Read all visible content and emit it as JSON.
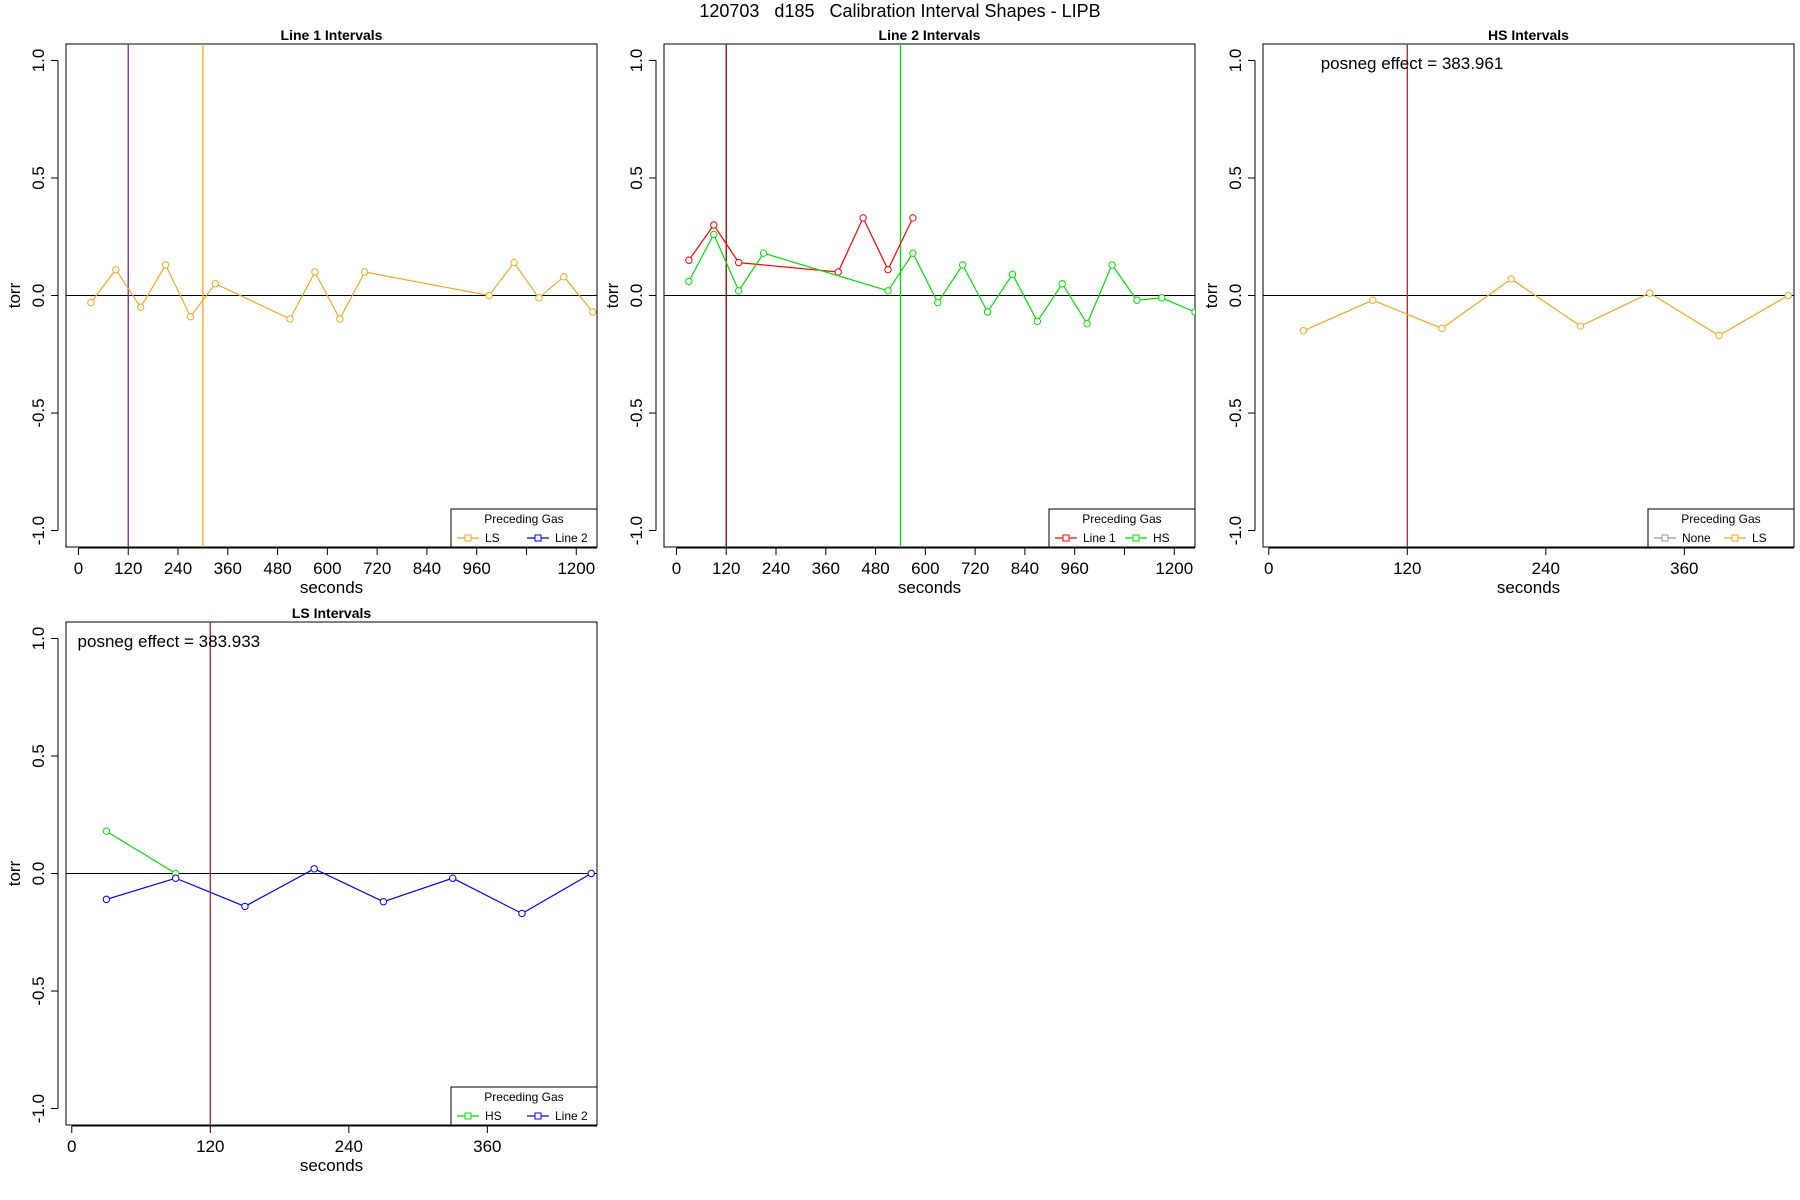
{
  "title": "120703   d185   Calibration Interval Shapes - LIPB",
  "chart_data": [
    {
      "type": "line",
      "title": "Line 1 Intervals",
      "xlabel": "seconds",
      "ylabel": "torr",
      "xlim": [
        -30,
        1250
      ],
      "ylim": [
        -1.07,
        1.07
      ],
      "xticks": [
        0,
        120,
        240,
        360,
        480,
        600,
        720,
        840,
        960,
        1080,
        1200
      ],
      "xtick_labels": [
        "0",
        "120",
        "240",
        "360",
        "480",
        "600",
        "720",
        "840",
        "960",
        "",
        "1200"
      ],
      "yticks": [
        -1.0,
        -0.5,
        0.0,
        0.5,
        1.0
      ],
      "ytick_labels": [
        "-1.0",
        "-0.5",
        "0.0",
        "0.5",
        "1.0"
      ],
      "hline": 0,
      "vlines": [
        {
          "x": 120,
          "color": "#7b1fa2"
        },
        {
          "x": 300,
          "color": "#f5a623"
        }
      ],
      "series": [
        {
          "name": "LS",
          "color": "#f5a623",
          "x": [
            30,
            90,
            150,
            210,
            270,
            330,
            510,
            570,
            630,
            690,
            990,
            1050,
            1110,
            1170,
            1240
          ],
          "y": [
            -0.03,
            0.11,
            -0.05,
            0.13,
            -0.09,
            0.05,
            -0.1,
            0.1,
            -0.1,
            0.1,
            0.0,
            0.14,
            -0.01,
            0.08,
            -0.07
          ]
        }
      ],
      "legend": {
        "title": "Preceding Gas",
        "entries": [
          {
            "label": "LS",
            "color": "#f5a623"
          },
          {
            "label": "Line 2",
            "color": "#0000ff"
          }
        ],
        "position": "bottom-right"
      }
    },
    {
      "type": "line",
      "title": "Line 2 Intervals",
      "xlabel": "seconds",
      "ylabel": "torr",
      "xlim": [
        -30,
        1250
      ],
      "ylim": [
        -1.07,
        1.07
      ],
      "xticks": [
        0,
        120,
        240,
        360,
        480,
        600,
        720,
        840,
        960,
        1080,
        1200
      ],
      "xtick_labels": [
        "0",
        "120",
        "240",
        "360",
        "480",
        "600",
        "720",
        "840",
        "960",
        "",
        "1200"
      ],
      "yticks": [
        -1.0,
        -0.5,
        0.0,
        0.5,
        1.0
      ],
      "ytick_labels": [
        "-1.0",
        "-0.5",
        "0.0",
        "0.5",
        "1.0"
      ],
      "hline": 0,
      "vlines": [
        {
          "x": 120,
          "color": "#8b0000"
        },
        {
          "x": 540,
          "color": "#00e000"
        }
      ],
      "series": [
        {
          "name": "Line 1",
          "color": "#ff0000",
          "segments": [
            {
              "x": [
                30,
                90,
                150
              ],
              "y": [
                0.15,
                0.3,
                0.14
              ]
            },
            {
              "x": [
                150,
                390
              ],
              "y": [
                0.14,
                0.1
              ]
            },
            {
              "x": [
                390,
                450,
                510,
                570
              ],
              "y": [
                0.1,
                0.33,
                0.11,
                0.33
              ]
            }
          ]
        },
        {
          "name": "HS",
          "color": "#00e000",
          "segments": [
            {
              "x": [
                30,
                90,
                150,
                210
              ],
              "y": [
                0.06,
                0.26,
                0.02,
                0.18
              ]
            },
            {
              "x": [
                210,
                510
              ],
              "y": [
                0.18,
                0.02
              ]
            },
            {
              "x": [
                510,
                570,
                630,
                690,
                750,
                810,
                870,
                930,
                990,
                1050,
                1110,
                1170,
                1250
              ],
              "y": [
                0.02,
                0.18,
                -0.03,
                0.13,
                -0.07,
                0.09,
                -0.11,
                0.05,
                -0.12,
                0.13,
                -0.02,
                -0.01,
                -0.07
              ]
            }
          ]
        }
      ],
      "legend": {
        "title": "Preceding Gas",
        "entries": [
          {
            "label": "Line 1",
            "color": "#ff0000"
          },
          {
            "label": "HS",
            "color": "#00e000"
          }
        ],
        "position": "bottom-right"
      }
    },
    {
      "type": "line",
      "title": "HS Intervals",
      "xlabel": "seconds",
      "ylabel": "torr",
      "xlim": [
        -5,
        455
      ],
      "ylim": [
        -1.07,
        1.07
      ],
      "xticks": [
        0,
        120,
        240,
        360
      ],
      "xtick_labels": [
        "0",
        "120",
        "240",
        "360"
      ],
      "yticks": [
        -1.0,
        -0.5,
        0.0,
        0.5,
        1.0
      ],
      "ytick_labels": [
        "-1.0",
        "-0.5",
        "0.0",
        "0.5",
        "1.0"
      ],
      "hline": 0,
      "vlines": [
        {
          "x": 120,
          "color": "#b22222"
        }
      ],
      "annotation": {
        "text": "posneg effect = 383.961",
        "x": 45,
        "y": 0.99
      },
      "series": [
        {
          "name": "LS",
          "color": "#f5a623",
          "x": [
            30,
            90,
            150,
            210,
            270,
            330,
            390,
            450
          ],
          "y": [
            -0.15,
            -0.02,
            -0.14,
            0.07,
            -0.13,
            0.01,
            -0.17,
            0.0
          ]
        }
      ],
      "legend": {
        "title": "Preceding Gas",
        "entries": [
          {
            "label": "None",
            "color": "#999999"
          },
          {
            "label": "LS",
            "color": "#f5a623"
          }
        ],
        "position": "bottom-right"
      }
    },
    {
      "type": "line",
      "title": "LS Intervals",
      "xlabel": "seconds",
      "ylabel": "torr",
      "xlim": [
        -5,
        455
      ],
      "ylim": [
        -1.07,
        1.07
      ],
      "xticks": [
        0,
        120,
        240,
        360
      ],
      "xtick_labels": [
        "0",
        "120",
        "240",
        "360"
      ],
      "yticks": [
        -1.0,
        -0.5,
        0.0,
        0.5,
        1.0
      ],
      "ytick_labels": [
        "-1.0",
        "-0.5",
        "0.0",
        "0.5",
        "1.0"
      ],
      "hline": 0,
      "vlines": [
        {
          "x": 120,
          "color": "#b22222"
        }
      ],
      "annotation": {
        "text": "posneg effect = 383.933",
        "x": 5,
        "y": 0.99
      },
      "series": [
        {
          "name": "HS",
          "color": "#00e000",
          "x": [
            30,
            90
          ],
          "y": [
            0.18,
            0.0
          ]
        },
        {
          "name": "Line 2",
          "color": "#0000ff",
          "x": [
            30,
            90,
            150,
            210,
            270,
            330,
            390,
            450
          ],
          "y": [
            -0.11,
            -0.02,
            -0.14,
            0.02,
            -0.12,
            -0.02,
            -0.17,
            0.0
          ]
        }
      ],
      "legend": {
        "title": "Preceding Gas",
        "entries": [
          {
            "label": "HS",
            "color": "#00e000"
          },
          {
            "label": "Line 2",
            "color": "#0000ff"
          }
        ],
        "position": "bottom-right"
      }
    }
  ]
}
